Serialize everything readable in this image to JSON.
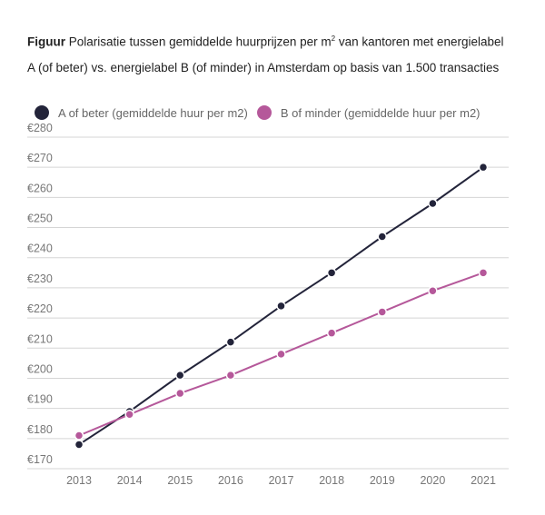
{
  "chart_data": {
    "type": "line",
    "title_prefix": "Figuur",
    "title_line1": "Polarisatie tussen gemiddelde huurprijzen per m",
    "title_sup": "2",
    "title_line1_end": " van kantoren met energielabel",
    "title_line2": "A (of beter) vs. energielabel B (of minder) in Amsterdam op basis van 1.500 transacties",
    "x": [
      "2013",
      "2014",
      "2015",
      "2016",
      "2017",
      "2018",
      "2019",
      "2020",
      "2021"
    ],
    "ylim": [
      170,
      280
    ],
    "yticks": [
      "€170",
      "€180",
      "€190",
      "€200",
      "€210",
      "€220",
      "€230",
      "€240",
      "€250",
      "€260",
      "€270",
      "€280"
    ],
    "grid": true,
    "legend_position": "top-left",
    "series": [
      {
        "name": "A of beter (gemiddelde huur per m2)",
        "color": "#23243a",
        "values": [
          178,
          189,
          201,
          212,
          224,
          235,
          247,
          258,
          270
        ]
      },
      {
        "name": "B of minder (gemiddelde huur per m2)",
        "color": "#b5589a",
        "values": [
          181,
          188,
          195,
          201,
          208,
          215,
          222,
          229,
          235
        ]
      }
    ]
  }
}
